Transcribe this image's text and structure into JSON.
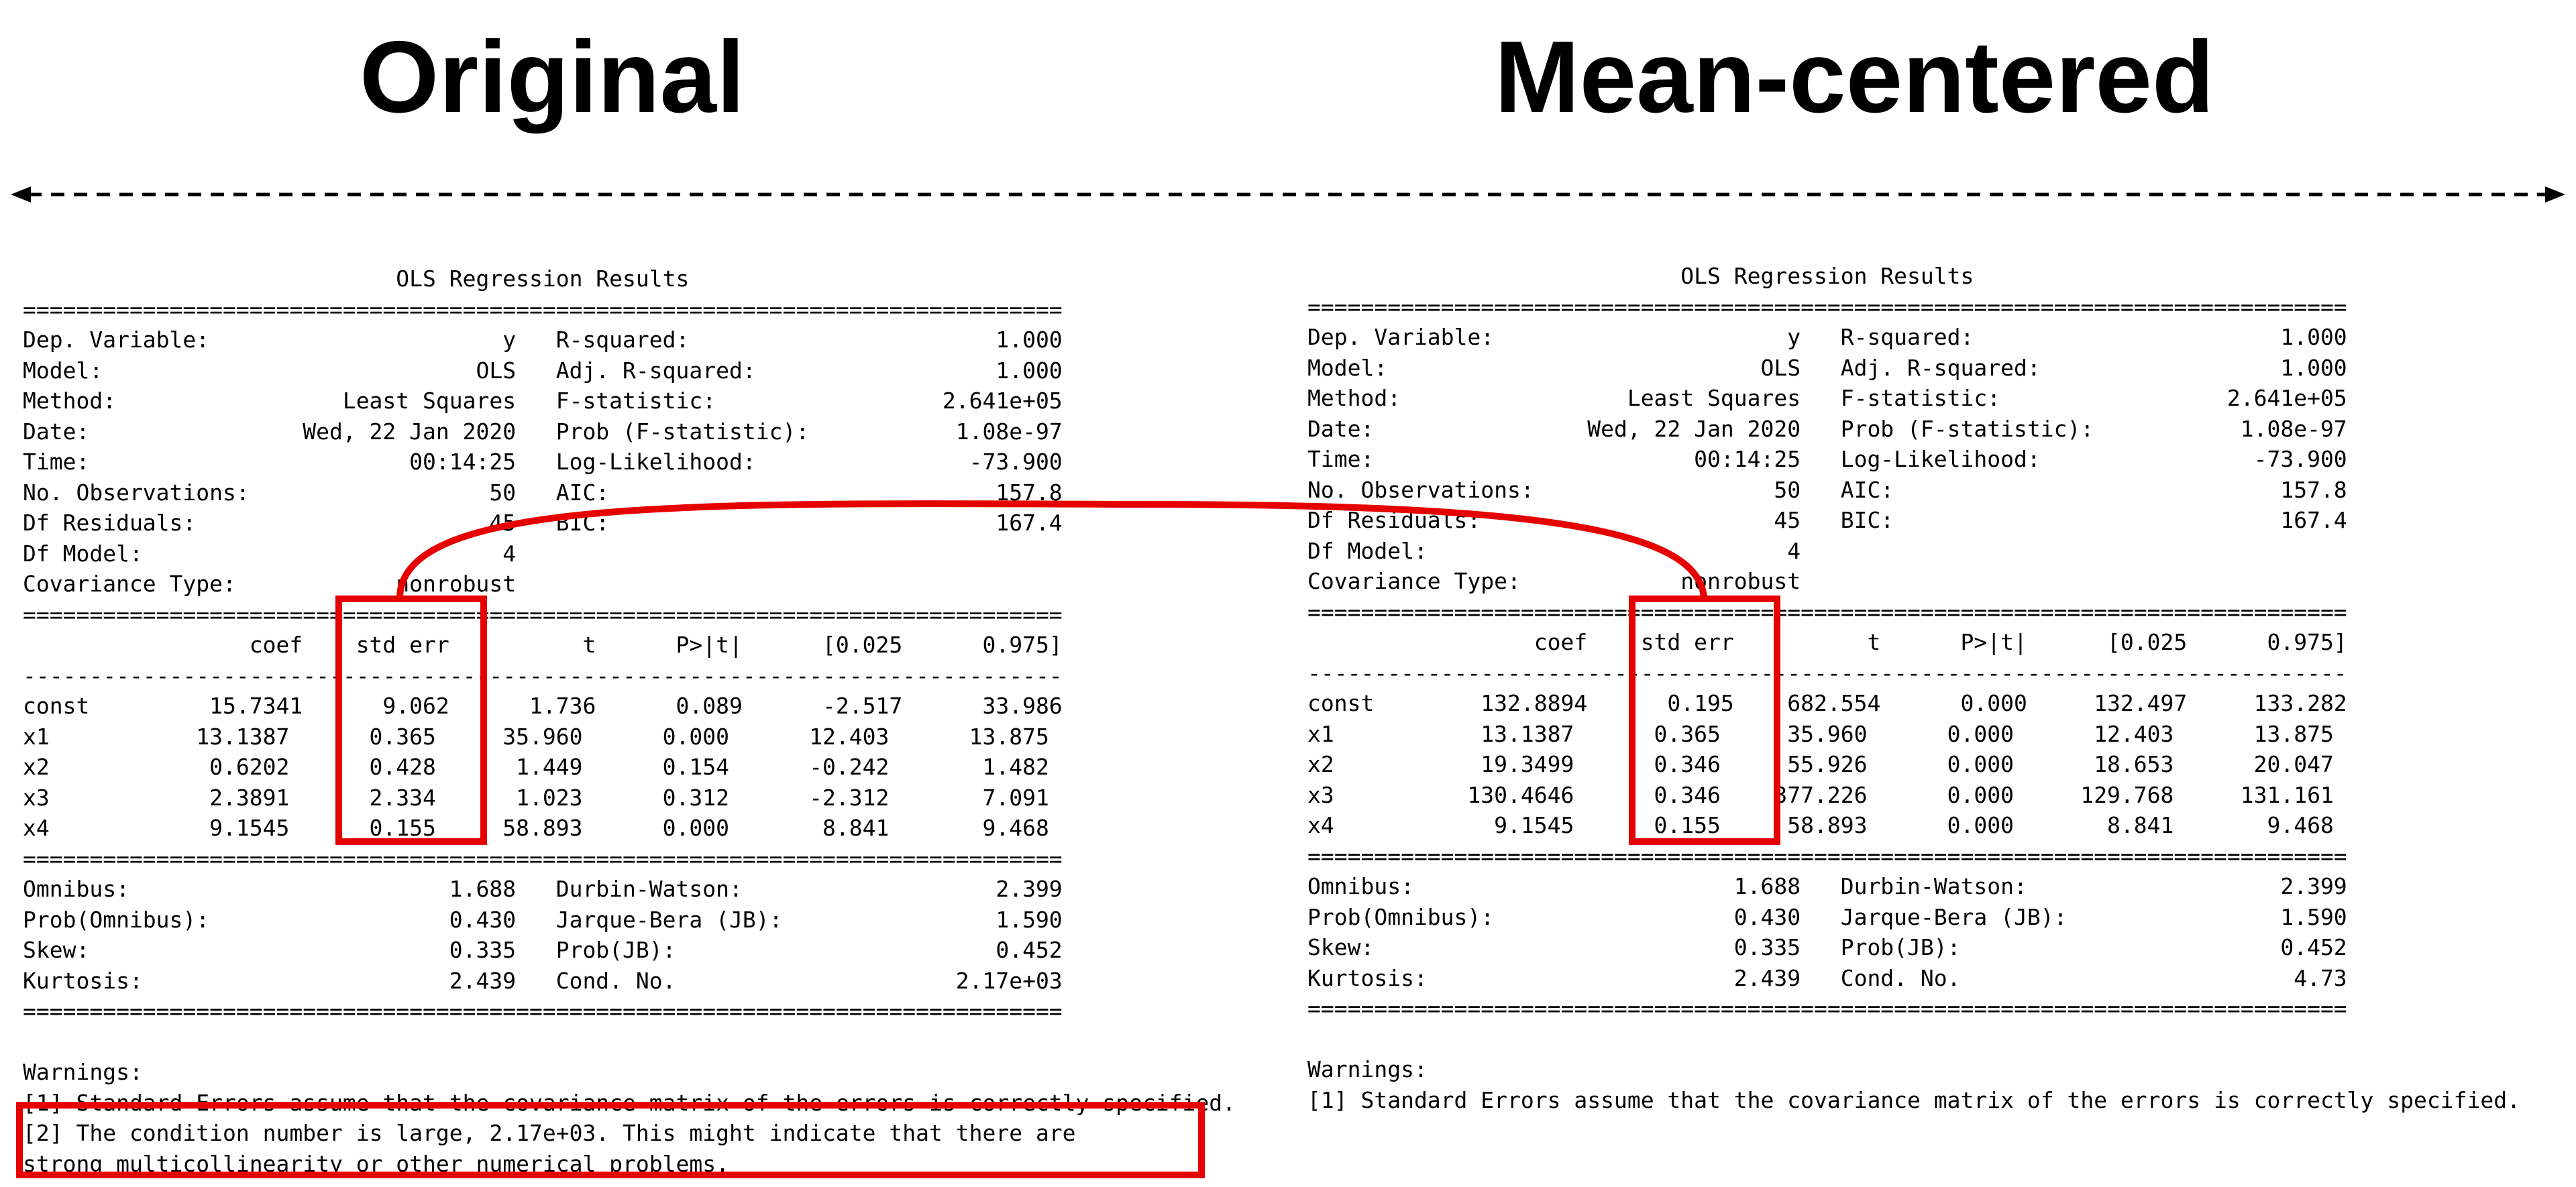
{
  "headings": {
    "original": "Original",
    "centered": "Mean-centered"
  },
  "colors": {
    "highlight": "#e60000",
    "text": "#000000",
    "background": "#ffffff"
  },
  "icons": {
    "arrow": "double-headed-dashed-arrow-icon"
  },
  "original": {
    "lines": [
      "                            OLS Regression Results                            ",
      "==============================================================================",
      "Dep. Variable:                      y   R-squared:                       1.000",
      "Model:                            OLS   Adj. R-squared:                  1.000",
      "Method:                 Least Squares   F-statistic:                 2.641e+05",
      "Date:                Wed, 22 Jan 2020   Prob (F-statistic):           1.08e-97",
      "Time:                        00:14:25   Log-Likelihood:                -73.900",
      "No. Observations:                  50   AIC:                             157.8",
      "Df Residuals:                      45   BIC:                             167.4",
      "Df Model:                           4                                         ",
      "Covariance Type:            nonrobust                                         ",
      "==============================================================================",
      "                 coef    std err          t      P>|t|      [0.025      0.975]",
      "------------------------------------------------------------------------------",
      "const         15.7341      9.062      1.736      0.089      -2.517      33.986",
      "x1           13.1387      0.365     35.960      0.000      12.403      13.875",
      "x2            0.6202      0.428      1.449      0.154      -0.242       1.482",
      "x3            2.3891      2.334      1.023      0.312      -2.312       7.091",
      "x4            9.1545      0.155     58.893      0.000       8.841       9.468",
      "==============================================================================",
      "Omnibus:                        1.688   Durbin-Watson:                   2.399",
      "Prob(Omnibus):                  0.430   Jarque-Bera (JB):                1.590",
      "Skew:                           0.335   Prob(JB):                        0.452",
      "Kurtosis:                       2.439   Cond. No.                     2.17e+03",
      "==============================================================================",
      "",
      "Warnings:",
      "[1] Standard Errors assume that the covariance matrix of the errors is correctly specified.",
      "[2] The condition number is large, 2.17e+03. This might indicate that there are",
      "strong multicollinearity or other numerical problems."
    ]
  },
  "centered": {
    "lines": [
      "                            OLS Regression Results                            ",
      "==============================================================================",
      "Dep. Variable:                      y   R-squared:                       1.000",
      "Model:                            OLS   Adj. R-squared:                  1.000",
      "Method:                 Least Squares   F-statistic:                 2.641e+05",
      "Date:                Wed, 22 Jan 2020   Prob (F-statistic):           1.08e-97",
      "Time:                        00:14:25   Log-Likelihood:                -73.900",
      "No. Observations:                  50   AIC:                             157.8",
      "Df Residuals:                      45   BIC:                             167.4",
      "Df Model:                           4                                         ",
      "Covariance Type:            nonrobust                                         ",
      "==============================================================================",
      "                 coef    std err          t      P>|t|      [0.025      0.975]",
      "------------------------------------------------------------------------------",
      "const        132.8894      0.195    682.554      0.000     132.497     133.282",
      "x1           13.1387      0.365     35.960      0.000      12.403      13.875",
      "x2           19.3499      0.346     55.926      0.000      18.653      20.047",
      "x3          130.4646      0.346    377.226      0.000     129.768     131.161",
      "x4            9.1545      0.155     58.893      0.000       8.841       9.468",
      "==============================================================================",
      "Omnibus:                        1.688   Durbin-Watson:                   2.399",
      "Prob(Omnibus):                  0.430   Jarque-Bera (JB):                1.590",
      "Skew:                           0.335   Prob(JB):                        0.452",
      "Kurtosis:                       2.439   Cond. No.                         4.73",
      "==============================================================================",
      "",
      "Warnings:",
      "[1] Standard Errors assume that the covariance matrix of the errors is correctly specified."
    ]
  }
}
